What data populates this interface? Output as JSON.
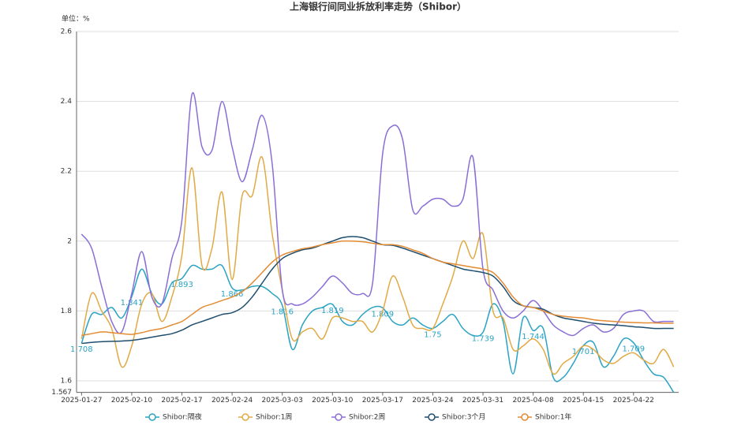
{
  "chart_data": {
    "type": "line",
    "title": "上海银行间同业拆放利率走势（Shibor）",
    "y_label": "单位：%",
    "categories": [
      "2025-01-27",
      null,
      null,
      null,
      null,
      "2025-02-10",
      null,
      null,
      null,
      null,
      "2025-02-17",
      null,
      null,
      null,
      null,
      "2025-02-24",
      null,
      null,
      null,
      null,
      "2025-03-03",
      null,
      null,
      null,
      null,
      "2025-03-10",
      null,
      null,
      null,
      null,
      "2025-03-17",
      null,
      null,
      null,
      null,
      "2025-03-24",
      null,
      null,
      null,
      null,
      "2025-03-31",
      null,
      null,
      null,
      null,
      "2025-04-08",
      null,
      null,
      null,
      null,
      "2025-04-15",
      null,
      null,
      null,
      null,
      "2025-04-22",
      null,
      null,
      null,
      null
    ],
    "ylim": [
      1.567,
      2.6
    ],
    "yticks": [
      1.567,
      1.6,
      1.8,
      2,
      2.2,
      2.4,
      2.6
    ],
    "grid": true,
    "legend": "bottom",
    "series": [
      {
        "name": "Shibor:隔夜",
        "color": "#2aa3c4",
        "labeled": true,
        "values": [
          1.708,
          1.79,
          1.79,
          1.81,
          1.78,
          1.841,
          1.92,
          1.85,
          1.82,
          1.88,
          1.893,
          1.93,
          1.92,
          1.92,
          1.93,
          1.866,
          1.86,
          1.87,
          1.87,
          1.85,
          1.816,
          1.69,
          1.76,
          1.8,
          1.81,
          1.819,
          1.77,
          1.76,
          1.79,
          1.81,
          1.809,
          1.77,
          1.76,
          1.78,
          1.76,
          1.75,
          1.77,
          1.79,
          1.75,
          1.73,
          1.739,
          1.82,
          1.77,
          1.62,
          1.78,
          1.744,
          1.75,
          1.61,
          1.61,
          1.65,
          1.701,
          1.71,
          1.64,
          1.67,
          1.72,
          1.709,
          1.66,
          1.62,
          1.61,
          1.567
        ]
      },
      {
        "name": "Shibor:1周",
        "color": "#e0aa45",
        "values": [
          1.72,
          1.85,
          1.8,
          1.75,
          1.64,
          1.7,
          1.82,
          1.85,
          1.77,
          1.84,
          1.96,
          2.21,
          1.93,
          1.98,
          2.14,
          1.89,
          2.13,
          2.13,
          2.24,
          2.02,
          1.86,
          1.72,
          1.74,
          1.75,
          1.72,
          1.78,
          1.78,
          1.77,
          1.77,
          1.74,
          1.8,
          1.9,
          1.84,
          1.76,
          1.75,
          1.75,
          1.82,
          1.9,
          2.0,
          1.95,
          2.02,
          1.8,
          1.78,
          1.69,
          1.7,
          1.72,
          1.69,
          1.62,
          1.65,
          1.67,
          1.7,
          1.69,
          1.66,
          1.65,
          1.67,
          1.68,
          1.66,
          1.65,
          1.69,
          1.64
        ]
      },
      {
        "name": "Shibor:2周",
        "color": "#8a6ed6",
        "values": [
          2.02,
          1.98,
          1.87,
          1.77,
          1.74,
          1.85,
          1.97,
          1.84,
          1.82,
          1.95,
          2.06,
          2.42,
          2.27,
          2.26,
          2.4,
          2.27,
          2.17,
          2.26,
          2.36,
          2.22,
          1.86,
          1.82,
          1.82,
          1.84,
          1.87,
          1.9,
          1.88,
          1.85,
          1.85,
          1.88,
          2.25,
          2.33,
          2.29,
          2.09,
          2.1,
          2.12,
          2.12,
          2.1,
          2.12,
          2.24,
          1.92,
          1.86,
          1.8,
          1.78,
          1.8,
          1.83,
          1.8,
          1.76,
          1.74,
          1.73,
          1.75,
          1.76,
          1.74,
          1.75,
          1.79,
          1.8,
          1.8,
          1.77,
          1.77,
          1.77
        ]
      },
      {
        "name": "Shibor:3个月",
        "color": "#1f4e6e",
        "values": [
          1.707,
          1.71,
          1.712,
          1.713,
          1.714,
          1.716,
          1.72,
          1.725,
          1.73,
          1.735,
          1.745,
          1.76,
          1.77,
          1.78,
          1.79,
          1.795,
          1.81,
          1.84,
          1.88,
          1.92,
          1.95,
          1.965,
          1.975,
          1.98,
          1.99,
          2.0,
          2.01,
          2.013,
          2.01,
          2.0,
          1.99,
          1.988,
          1.98,
          1.97,
          1.96,
          1.95,
          1.94,
          1.93,
          1.92,
          1.915,
          1.91,
          1.9,
          1.87,
          1.83,
          1.815,
          1.81,
          1.805,
          1.79,
          1.78,
          1.775,
          1.77,
          1.765,
          1.762,
          1.76,
          1.758,
          1.755,
          1.753,
          1.75,
          1.75,
          1.75
        ]
      },
      {
        "name": "Shibor:1年",
        "color": "#e38b35",
        "values": [
          1.73,
          1.735,
          1.74,
          1.738,
          1.735,
          1.733,
          1.738,
          1.745,
          1.75,
          1.76,
          1.77,
          1.79,
          1.81,
          1.82,
          1.83,
          1.84,
          1.855,
          1.88,
          1.91,
          1.94,
          1.96,
          1.97,
          1.978,
          1.983,
          1.99,
          1.995,
          2.0,
          2.0,
          1.998,
          1.994,
          1.99,
          1.99,
          1.985,
          1.975,
          1.965,
          1.95,
          1.94,
          1.935,
          1.93,
          1.925,
          1.92,
          1.91,
          1.88,
          1.84,
          1.815,
          1.81,
          1.8,
          1.79,
          1.785,
          1.782,
          1.78,
          1.775,
          1.772,
          1.77,
          1.768,
          1.767,
          1.766,
          1.766,
          1.765,
          1.765
        ]
      }
    ]
  }
}
